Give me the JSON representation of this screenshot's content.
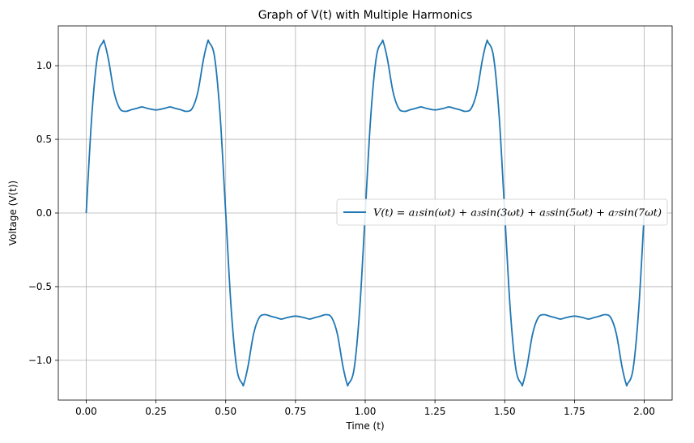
{
  "chart_data": {
    "type": "line",
    "title": "Graph of V(t) with Multiple Harmonics",
    "xlabel": "Time (t)",
    "ylabel": "Voltage (V(t))",
    "xlim": [
      -0.1,
      2.1
    ],
    "ylim": [
      -1.27,
      1.27
    ],
    "xticks": [
      0.0,
      0.25,
      0.5,
      0.75,
      1.0,
      1.25,
      1.5,
      1.75,
      2.0
    ],
    "xtick_labels": [
      "0.00",
      "0.25",
      "0.50",
      "0.75",
      "1.00",
      "1.25",
      "1.50",
      "1.75",
      "2.00"
    ],
    "yticks": [
      -1.0,
      -0.5,
      0.0,
      0.5,
      1.0
    ],
    "ytick_labels": [
      "−1.0",
      "−0.5",
      "0.0",
      "0.5",
      "1.0"
    ],
    "grid": true,
    "legend_position": "center-right",
    "series": [
      {
        "name": "V(t) = a₁sin(ωt) + a₃sin(3ωt) + a₅sin(5ωt) + a₇sin(7ωt)",
        "color": "#1f77b4",
        "x": [
          0.0,
          0.02,
          0.04,
          0.06,
          0.065,
          0.08,
          0.1,
          0.12,
          0.14,
          0.16,
          0.18,
          0.2,
          0.22,
          0.25,
          0.28,
          0.3,
          0.32,
          0.34,
          0.36,
          0.38,
          0.4,
          0.42,
          0.435,
          0.44,
          0.46,
          0.48,
          0.5,
          0.52,
          0.54,
          0.56,
          0.565,
          0.58,
          0.6,
          0.62,
          0.64,
          0.66,
          0.68,
          0.7,
          0.72,
          0.75,
          0.78,
          0.8,
          0.82,
          0.84,
          0.86,
          0.88,
          0.9,
          0.92,
          0.935,
          0.94,
          0.96,
          0.98,
          1.0,
          1.02,
          1.04,
          1.06,
          1.065,
          1.08,
          1.1,
          1.12,
          1.14,
          1.16,
          1.18,
          1.2,
          1.22,
          1.25,
          1.28,
          1.3,
          1.32,
          1.34,
          1.36,
          1.38,
          1.4,
          1.42,
          1.435,
          1.44,
          1.46,
          1.48,
          1.5,
          1.52,
          1.54,
          1.56,
          1.565,
          1.58,
          1.6,
          1.62,
          1.64,
          1.66,
          1.68,
          1.7,
          1.72,
          1.75,
          1.78,
          1.8,
          1.82,
          1.84,
          1.86,
          1.88,
          1.9,
          1.92,
          1.935,
          1.94,
          1.96,
          1.98,
          2.0
        ],
        "y": [
          0.0,
          0.66,
          1.06,
          1.16,
          1.16,
          1.04,
          0.82,
          0.71,
          0.69,
          0.7,
          0.71,
          0.72,
          0.71,
          0.7,
          0.71,
          0.72,
          0.71,
          0.7,
          0.69,
          0.71,
          0.82,
          1.04,
          1.16,
          1.16,
          1.06,
          0.66,
          0.0,
          -0.66,
          -1.06,
          -1.16,
          -1.16,
          -1.04,
          -0.82,
          -0.71,
          -0.69,
          -0.7,
          -0.71,
          -0.72,
          -0.71,
          -0.7,
          -0.71,
          -0.72,
          -0.71,
          -0.7,
          -0.69,
          -0.71,
          -0.82,
          -1.04,
          -1.16,
          -1.16,
          -1.06,
          -0.66,
          0.0,
          0.66,
          1.06,
          1.16,
          1.16,
          1.04,
          0.82,
          0.71,
          0.69,
          0.7,
          0.71,
          0.72,
          0.71,
          0.7,
          0.71,
          0.72,
          0.71,
          0.7,
          0.69,
          0.71,
          0.82,
          1.04,
          1.16,
          1.16,
          1.06,
          0.66,
          0.0,
          -0.66,
          -1.06,
          -1.16,
          -1.16,
          -1.04,
          -0.82,
          -0.71,
          -0.69,
          -0.7,
          -0.71,
          -0.72,
          -0.71,
          -0.7,
          -0.71,
          -0.72,
          -0.71,
          -0.7,
          -0.69,
          -0.71,
          -0.82,
          -1.04,
          -1.16,
          -1.16,
          -1.06,
          -0.66,
          0.0
        ]
      }
    ]
  }
}
